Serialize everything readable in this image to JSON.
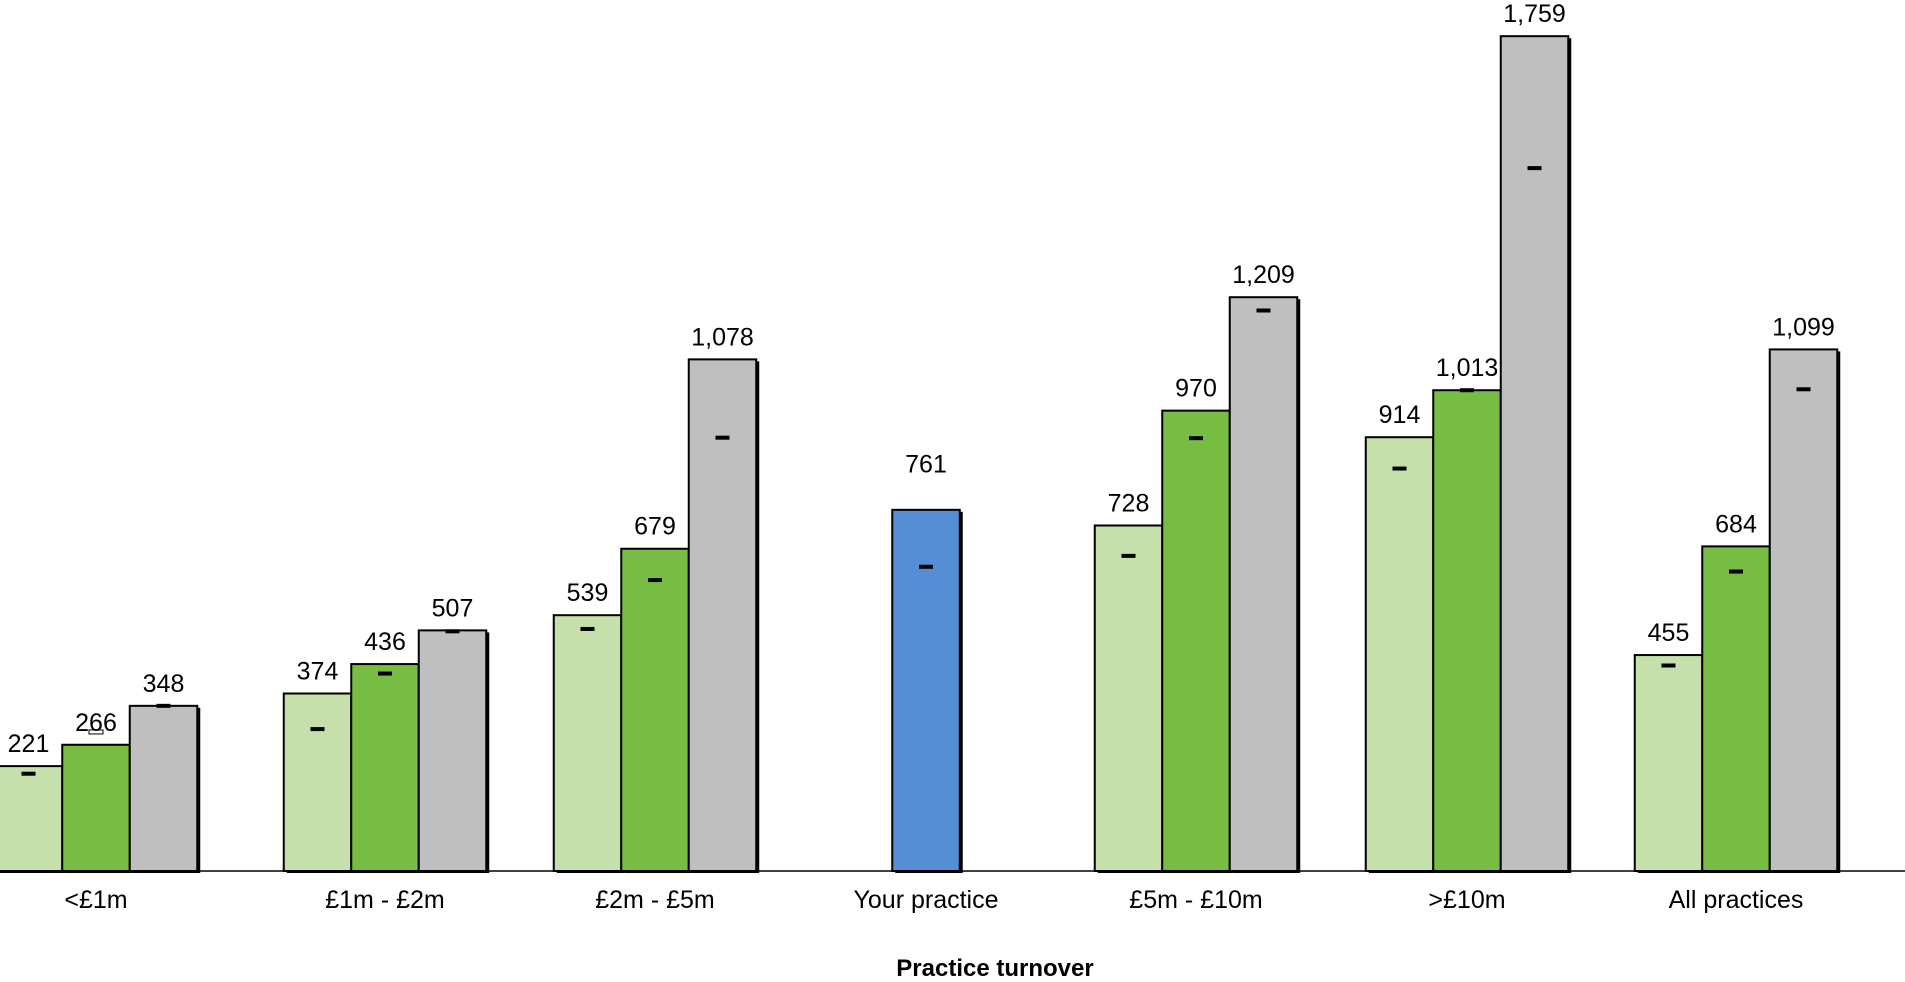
{
  "chart_data": {
    "type": "bar",
    "title": "",
    "xlabel": "Practice turnover",
    "ylabel": "",
    "ylim": [
      0,
      1800
    ],
    "grid": false,
    "legend": "none",
    "groups": [
      {
        "category": "<£1m",
        "bars": [
          {
            "value": 221,
            "label": "221",
            "color": "#c6e0ab",
            "marker": 205,
            "marker_style": "solid"
          },
          {
            "value": 266,
            "label": "266",
            "color": "#77bd43",
            "marker": 293,
            "marker_style": "hollow"
          },
          {
            "value": 348,
            "label": "348",
            "color": "#bfbfbf",
            "marker": 348,
            "marker_style": "solid"
          }
        ]
      },
      {
        "category": "£1m - £2m",
        "bars": [
          {
            "value": 374,
            "label": "374",
            "color": "#c6e0ab",
            "marker": 299,
            "marker_style": "solid"
          },
          {
            "value": 436,
            "label": "436",
            "color": "#77bd43",
            "marker": 416,
            "marker_style": "solid"
          },
          {
            "value": 507,
            "label": "507",
            "color": "#bfbfbf",
            "marker": 505,
            "marker_style": "solid"
          }
        ]
      },
      {
        "category": "£2m - £5m",
        "bars": [
          {
            "value": 539,
            "label": "539",
            "color": "#c6e0ab",
            "marker": 510,
            "marker_style": "solid"
          },
          {
            "value": 679,
            "label": "679",
            "color": "#77bd43",
            "marker": 613,
            "marker_style": "solid"
          },
          {
            "value": 1078,
            "label": "1,078",
            "color": "#bfbfbf",
            "marker": 913,
            "marker_style": "solid"
          }
        ]
      },
      {
        "category": "Your practice",
        "bars": [
          {
            "value": 761,
            "label": "761",
            "color": "#558ed5",
            "marker": 641,
            "marker_style": "solid",
            "label_above_offset": 1.55
          }
        ]
      },
      {
        "category": "£5m - £10m",
        "bars": [
          {
            "value": 728,
            "label": "728",
            "color": "#c6e0ab",
            "marker": 664,
            "marker_style": "solid"
          },
          {
            "value": 970,
            "label": "970",
            "color": "#77bd43",
            "marker": 912,
            "marker_style": "solid"
          },
          {
            "value": 1209,
            "label": "1,209",
            "color": "#bfbfbf",
            "marker": 1181,
            "marker_style": "solid"
          }
        ]
      },
      {
        "category": ">£10m",
        "bars": [
          {
            "value": 914,
            "label": "914",
            "color": "#c6e0ab",
            "marker": 848,
            "marker_style": "solid"
          },
          {
            "value": 1013,
            "label": "1,013",
            "color": "#77bd43",
            "marker": 1013,
            "marker_style": "solid"
          },
          {
            "value": 1759,
            "label": "1,759",
            "color": "#bfbfbf",
            "marker": 1481,
            "marker_style": "solid"
          }
        ]
      },
      {
        "category": "All practices",
        "bars": [
          {
            "value": 455,
            "label": "455",
            "color": "#c6e0ab",
            "marker": 433,
            "marker_style": "solid"
          },
          {
            "value": 684,
            "label": "684",
            "color": "#77bd43",
            "marker": 631,
            "marker_style": "solid"
          },
          {
            "value": 1099,
            "label": "1,099",
            "color": "#bfbfbf",
            "marker": 1015,
            "marker_style": "solid"
          }
        ]
      }
    ]
  }
}
